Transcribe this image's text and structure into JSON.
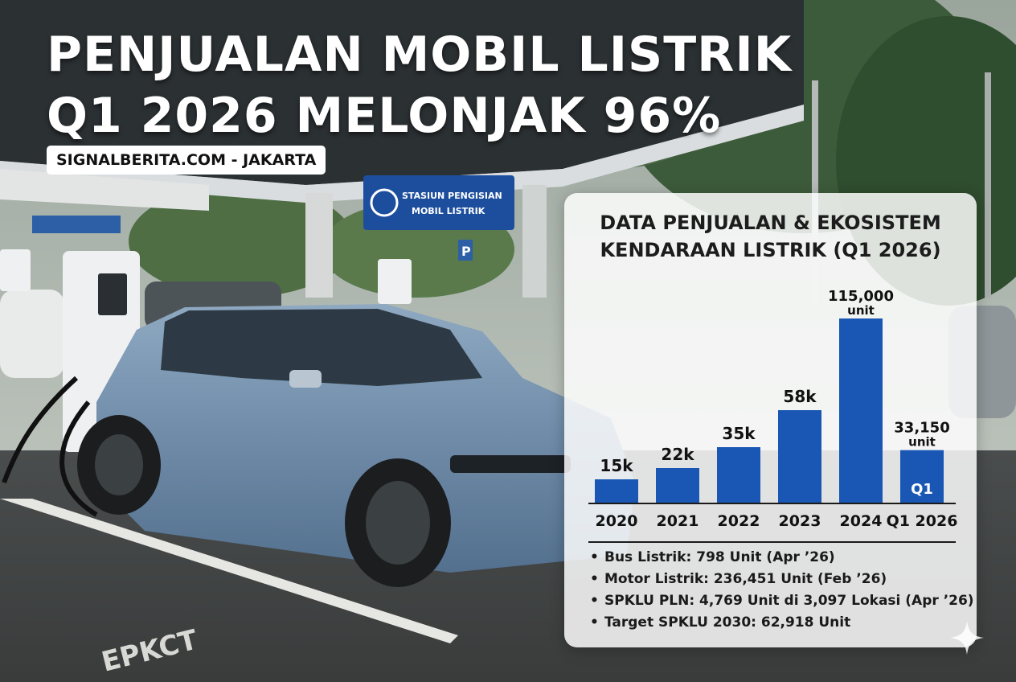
{
  "headline": {
    "line1": "PENJUALAN MOBIL LISTRIK",
    "line2": "Q1 2026 MELONJAK 96%"
  },
  "source": "SIGNALBERITA.COM - JAKARTA",
  "background": {
    "sign_line1": "STASIUN PENGISIAN",
    "sign_line2": "MOBIL LISTRIK",
    "parking_sign": "P",
    "road_marking": "EPKCT"
  },
  "panel": {
    "title_line1": "DATA PENJUALAN & EKOSISTEM",
    "title_line2": "KENDARAAN LISTRIK (Q1 2026)",
    "facts": [
      "Bus Listrik: 798 Unit (Apr ’26)",
      "Motor Listrik: 236,451 Unit (Feb ’26)",
      "SPKLU PLN: 4,769 Unit di 3,097 Lokasi (Apr ’26)",
      "Target SPKLU 2030: 62,918 Unit"
    ]
  },
  "chart_data": {
    "type": "bar",
    "title": "DATA PENJUALAN & EKOSISTEM KENDARAAN LISTRIK (Q1 2026)",
    "categories": [
      "2020",
      "2021",
      "2022",
      "2023",
      "2024",
      "Q1 2026"
    ],
    "values": [
      15000,
      22000,
      35000,
      58000,
      115000,
      33150
    ],
    "value_labels": [
      "15k",
      "22k",
      "35k",
      "58k",
      "115,000",
      "33,150"
    ],
    "unit_labels": [
      "",
      "",
      "",
      "",
      "unit",
      "unit"
    ],
    "bar_inner_labels": [
      "",
      "",
      "",
      "",
      "",
      "Q1"
    ],
    "xlabel": "",
    "ylabel": "",
    "ylim": [
      0,
      115000
    ],
    "bar_color": "#1a56b4",
    "grid": false,
    "legend": "none"
  },
  "colors": {
    "bar": "#1a56b4",
    "headline": "#ffffff",
    "sign": "#1d4e9e"
  },
  "icons": [
    "sparkle-icon",
    "ev-charger-icon"
  ]
}
